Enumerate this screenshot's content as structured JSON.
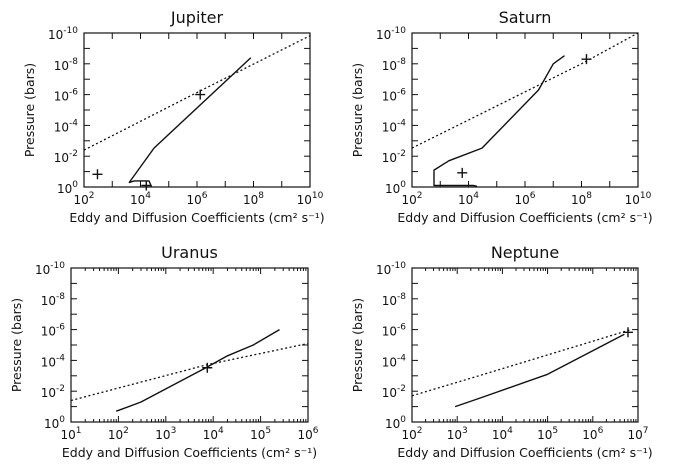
{
  "chart_data": [
    {
      "type": "line",
      "title": "Jupiter",
      "xlabel": "Eddy and Diffusion Coefficients (cm² s⁻¹)",
      "ylabel": "Pressure (bars)",
      "xscale": "log",
      "yscale": "log",
      "yaxis_inverted": true,
      "xlim": [
        100,
        10000000000
      ],
      "ylim": [
        1,
        1e-10
      ],
      "xticks": [
        100,
        10000,
        1000000,
        100000000,
        10000000000
      ],
      "xtick_labels": [
        {
          "base": "10",
          "exp": "2"
        },
        {
          "base": "10",
          "exp": "4"
        },
        {
          "base": "10",
          "exp": "6"
        },
        {
          "base": "10",
          "exp": "8"
        },
        {
          "base": "10",
          "exp": "10"
        }
      ],
      "yticks": [
        1,
        0.01,
        0.0001,
        1e-06,
        1e-08,
        1e-10
      ],
      "ytick_labels": [
        {
          "base": "10",
          "exp": "0"
        },
        {
          "base": "10",
          "exp": "-2"
        },
        {
          "base": "10",
          "exp": "-4"
        },
        {
          "base": "10",
          "exp": "-6"
        },
        {
          "base": "10",
          "exp": "-8"
        },
        {
          "base": "10",
          "exp": "-10"
        }
      ],
      "series": [
        {
          "style": "solid",
          "points": [
            [
              25000,
              1
            ],
            [
              20000,
              0.4
            ],
            [
              6000,
              0.4
            ],
            [
              4000,
              0.5
            ],
            [
              30000,
              0.003
            ],
            [
              80000000,
              4e-09
            ]
          ]
        },
        {
          "style": "dotted",
          "points": [
            [
              100,
              0.004
            ],
            [
              1500000,
              5e-07
            ],
            [
              10000000000,
              1.5e-10
            ]
          ]
        }
      ],
      "markers": [
        [
          300,
          0.15
        ],
        [
          16000,
          0.8
        ],
        [
          1300000,
          1e-06
        ]
      ]
    },
    {
      "type": "line",
      "title": "Saturn",
      "xlabel": "Eddy and Diffusion Coefficients (cm² s⁻¹)",
      "ylabel": "Pressure (bars)",
      "xscale": "log",
      "yscale": "log",
      "yaxis_inverted": true,
      "xlim": [
        100,
        10000000000
      ],
      "ylim": [
        1,
        1e-10
      ],
      "xticks": [
        100,
        10000,
        1000000,
        100000000,
        10000000000
      ],
      "xtick_labels": [
        {
          "base": "10",
          "exp": "2"
        },
        {
          "base": "10",
          "exp": "4"
        },
        {
          "base": "10",
          "exp": "6"
        },
        {
          "base": "10",
          "exp": "8"
        },
        {
          "base": "10",
          "exp": "10"
        }
      ],
      "yticks": [
        1,
        0.01,
        0.0001,
        1e-06,
        1e-08,
        1e-10
      ],
      "ytick_labels": [
        {
          "base": "10",
          "exp": "0"
        },
        {
          "base": "10",
          "exp": "-2"
        },
        {
          "base": "10",
          "exp": "-4"
        },
        {
          "base": "10",
          "exp": "-6"
        },
        {
          "base": "10",
          "exp": "-8"
        },
        {
          "base": "10",
          "exp": "-10"
        }
      ],
      "series": [
        {
          "style": "solid",
          "points": [
            [
              20000,
              0.9
            ],
            [
              15000,
              0.8
            ],
            [
              600,
              0.8
            ],
            [
              600,
              0.08
            ],
            [
              2000,
              0.02
            ],
            [
              30000,
              0.003
            ],
            [
              3000000,
              5e-07
            ],
            [
              10000000,
              1e-08
            ],
            [
              25000000,
              3e-09
            ]
          ]
        },
        {
          "style": "dotted",
          "points": [
            [
              100,
              0.003
            ],
            [
              100000000,
              1e-08
            ],
            [
              10000000000,
              1e-10
            ]
          ]
        }
      ],
      "markers": [
        [
          6000,
          0.12
        ],
        [
          150000000,
          5e-09
        ]
      ]
    },
    {
      "type": "line",
      "title": "Uranus",
      "xlabel": "Eddy and Diffusion Coefficients (cm² s⁻¹)",
      "ylabel": "Pressure (bars)",
      "xscale": "log",
      "yscale": "log",
      "yaxis_inverted": true,
      "xlim": [
        10,
        1000000
      ],
      "ylim": [
        1,
        1e-10
      ],
      "xticks": [
        10,
        100,
        1000,
        10000,
        100000,
        1000000
      ],
      "xtick_labels": [
        {
          "base": "10",
          "exp": "1"
        },
        {
          "base": "10",
          "exp": "2"
        },
        {
          "base": "10",
          "exp": "3"
        },
        {
          "base": "10",
          "exp": "4"
        },
        {
          "base": "10",
          "exp": "5"
        },
        {
          "base": "10",
          "exp": "6"
        }
      ],
      "yticks": [
        1,
        0.01,
        0.0001,
        1e-06,
        1e-08,
        1e-10
      ],
      "ytick_labels": [
        {
          "base": "10",
          "exp": "0"
        },
        {
          "base": "10",
          "exp": "-2"
        },
        {
          "base": "10",
          "exp": "-4"
        },
        {
          "base": "10",
          "exp": "-6"
        },
        {
          "base": "10",
          "exp": "-8"
        },
        {
          "base": "10",
          "exp": "-10"
        }
      ],
      "series": [
        {
          "style": "solid",
          "points": [
            [
              90,
              0.2
            ],
            [
              300,
              0.05
            ],
            [
              7000,
              0.0003
            ],
            [
              20000,
              5e-05
            ],
            [
              70000,
              1e-05
            ],
            [
              250000,
              1e-06
            ]
          ]
        },
        {
          "style": "dotted",
          "points": [
            [
              10,
              0.04
            ],
            [
              7000,
              0.0002
            ],
            [
              1000000,
              8e-06
            ]
          ]
        }
      ],
      "markers": [
        [
          7500,
          0.0003
        ]
      ]
    },
    {
      "type": "line",
      "title": "Neptune",
      "xlabel": "Eddy and Diffusion Coefficients (cm² s⁻¹)",
      "ylabel": "Pressure (bars)",
      "xscale": "log",
      "yscale": "log",
      "yaxis_inverted": true,
      "xlim": [
        100,
        10000000
      ],
      "ylim": [
        1,
        1e-10
      ],
      "xticks": [
        100,
        1000,
        10000,
        100000,
        1000000,
        10000000
      ],
      "xtick_labels": [
        {
          "base": "10",
          "exp": "2"
        },
        {
          "base": "10",
          "exp": "3"
        },
        {
          "base": "10",
          "exp": "4"
        },
        {
          "base": "10",
          "exp": "5"
        },
        {
          "base": "10",
          "exp": "6"
        },
        {
          "base": "10",
          "exp": "7"
        }
      ],
      "yticks": [
        1,
        0.01,
        0.0001,
        1e-06,
        1e-08,
        1e-10
      ],
      "ytick_labels": [
        {
          "base": "10",
          "exp": "0"
        },
        {
          "base": "10",
          "exp": "-2"
        },
        {
          "base": "10",
          "exp": "-4"
        },
        {
          "base": "10",
          "exp": "-6"
        },
        {
          "base": "10",
          "exp": "-8"
        },
        {
          "base": "10",
          "exp": "-10"
        }
      ],
      "series": [
        {
          "style": "solid",
          "points": [
            [
              900,
              0.1
            ],
            [
              3000,
              0.03
            ],
            [
              100000,
              0.0008
            ],
            [
              5000000,
              2e-06
            ]
          ]
        },
        {
          "style": "dotted",
          "points": [
            [
              100,
              0.02
            ],
            [
              3000,
              0.001
            ],
            [
              7000000,
              1e-06
            ]
          ]
        }
      ],
      "markers": [
        [
          6000000,
          1.5e-06
        ]
      ]
    }
  ]
}
